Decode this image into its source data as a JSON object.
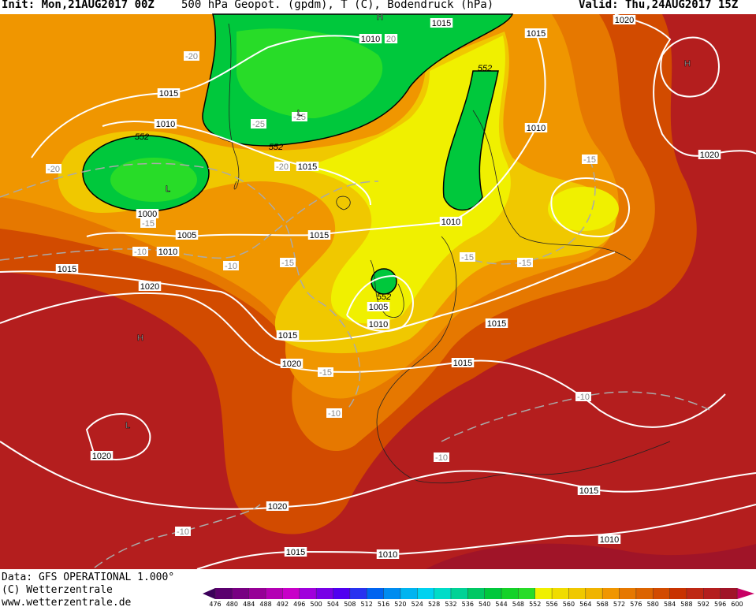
{
  "header": {
    "init": "Init: Mon,21AUG2017 00Z",
    "title": "500 hPa Geopot. (gpdm), T (C), Bodendruck (hPa)",
    "valid": "Valid: Thu,24AUG2017 15Z"
  },
  "map": {
    "isobar_labels": [
      "1015",
      "1015",
      "1020",
      "1010",
      "1015",
      "1010",
      "1015",
      "1010",
      "1020",
      "1000",
      "1005",
      "1010",
      "1015",
      "1015",
      "1010",
      "1020",
      "1005",
      "1010",
      "1015",
      "1015",
      "1020",
      "1015",
      "1020",
      "1020",
      "1015",
      "1010",
      "1015",
      "1010"
    ],
    "temperature_labels": [
      "-20",
      "20",
      "-25",
      "-25",
      "-20",
      "-20",
      "-15",
      "-10",
      "-10",
      "-15",
      "-15",
      "-15",
      "-15",
      "-15",
      "-10",
      "-10",
      "-10",
      "-10"
    ],
    "height_labels": [
      "552",
      "552",
      "552",
      "552"
    ],
    "centers": [
      "H",
      "H",
      "L",
      "L",
      "H",
      "L"
    ]
  },
  "footer": {
    "lines": [
      "Data: GFS OPERATIONAL 1.000°",
      "(C) Wetterzentrale",
      "www.wetterzentrale.de"
    ]
  },
  "colorbar": {
    "levels": [
      476,
      480,
      484,
      488,
      492,
      496,
      500,
      504,
      508,
      512,
      516,
      520,
      524,
      528,
      532,
      536,
      540,
      544,
      548,
      552,
      556,
      560,
      564,
      568,
      572,
      576,
      580,
      584,
      588,
      592,
      596,
      600
    ],
    "colors": [
      "#5a006e",
      "#780082",
      "#960096",
      "#b400b4",
      "#c800c8",
      "#a000dc",
      "#7800e6",
      "#5000f0",
      "#2832f0",
      "#0064f0",
      "#008cf0",
      "#00b4f0",
      "#00d2f0",
      "#00dcc8",
      "#00d296",
      "#00c864",
      "#00c83c",
      "#14d228",
      "#28dc28",
      "#f0f000",
      "#f0dc00",
      "#f0c800",
      "#f0b400",
      "#f09600",
      "#e67800",
      "#dc6400",
      "#d24b00",
      "#c83200",
      "#be2814",
      "#b41e1e",
      "#a01428"
    ],
    "low_color": "#3c005a",
    "high_color": "#c80064"
  }
}
